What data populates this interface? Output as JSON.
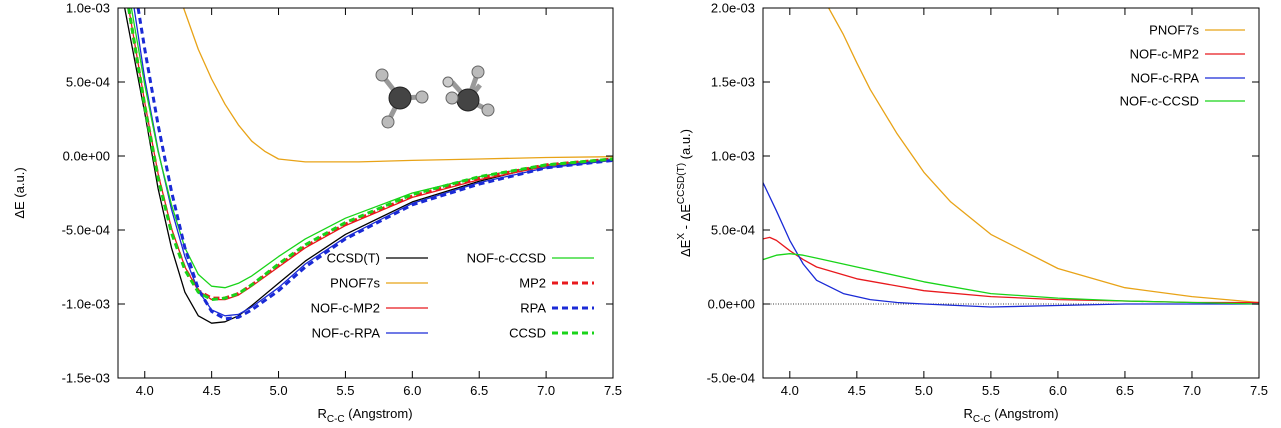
{
  "chart_data": [
    {
      "type": "line",
      "ylabel": "ΔE (a.u.)",
      "xlabel_main": "R",
      "xlabel_sub": "C-C",
      "xlabel_rest": " (Angstrom)",
      "xlim": [
        3.8,
        7.5
      ],
      "ylim": [
        -0.0015,
        0.001
      ],
      "xticks": [
        4.0,
        4.5,
        5.0,
        5.5,
        6.0,
        6.5,
        7.0,
        7.5
      ],
      "xtick_labels": [
        "4.0",
        "4.5",
        "5.0",
        "5.5",
        "6.0",
        "6.5",
        "7.0",
        "7.5"
      ],
      "yticks": [
        0.001,
        0.0005,
        0,
        -0.0005,
        -0.001,
        -0.0015
      ],
      "ytick_labels": [
        "1.0e-03",
        "5.0e-04",
        "0.0e+00",
        "-5.0e-04",
        "-1.0e-03",
        "-1.5e-03"
      ],
      "grid": false,
      "legend": "bottom-right, two columns",
      "series": [
        {
          "name": "CCSD(T)",
          "color": "#000000",
          "dash": "solid",
          "x": [
            3.85,
            4.0,
            4.1,
            4.2,
            4.3,
            4.4,
            4.5,
            4.6,
            4.7,
            4.8,
            5.0,
            5.2,
            5.5,
            6.0,
            6.5,
            7.0,
            7.5
          ],
          "values": [
            0.001,
            0.00029,
            -0.00022,
            -0.00062,
            -0.00092,
            -0.00108,
            -0.00113,
            -0.00112,
            -0.00108,
            -0.00101,
            -0.00086,
            -0.00071,
            -0.00053,
            -0.00031,
            -0.00017,
            -6e-05,
            -2e-05
          ]
        },
        {
          "name": "PNOF7s",
          "color": "#e8a317",
          "dash": "solid",
          "x": [
            4.29,
            4.4,
            4.5,
            4.6,
            4.7,
            4.8,
            4.9,
            5.0,
            5.2,
            5.4,
            5.6,
            6.0,
            6.5,
            7.0,
            7.5
          ],
          "values": [
            0.001,
            0.00072,
            0.00052,
            0.00035,
            0.00021,
            0.0001,
            3e-05,
            -2e-05,
            -4e-05,
            -4e-05,
            -4e-05,
            -3e-05,
            -2e-05,
            -1e-05,
            -5e-06
          ]
        },
        {
          "name": "NOF-c-MP2",
          "color": "#e8191d",
          "dash": "solid",
          "x": [
            3.88,
            4.0,
            4.1,
            4.2,
            4.3,
            4.4,
            4.5,
            4.6,
            4.7,
            4.8,
            5.0,
            5.2,
            5.5,
            6.0,
            6.5,
            7.0,
            7.5
          ],
          "values": [
            0.001,
            0.00036,
            -0.00012,
            -0.00049,
            -0.00075,
            -0.00091,
            -0.00097,
            -0.00097,
            -0.00094,
            -0.00088,
            -0.00075,
            -0.00062,
            -0.00047,
            -0.00028,
            -0.00016,
            -7e-05,
            -3e-05
          ]
        },
        {
          "name": "NOF-c-RPA",
          "color": "#1a2ad6",
          "dash": "solid",
          "x": [
            3.92,
            4.0,
            4.1,
            4.2,
            4.3,
            4.4,
            4.5,
            4.6,
            4.7,
            4.8,
            5.0,
            5.2,
            5.5,
            6.0,
            6.5,
            7.0,
            7.5
          ],
          "values": [
            0.001,
            0.00052,
            4e-05,
            -0.00036,
            -0.00068,
            -0.00091,
            -0.00104,
            -0.00108,
            -0.00107,
            -0.00102,
            -0.00089,
            -0.00073,
            -0.00055,
            -0.00032,
            -0.00018,
            -8e-05,
            -3e-05
          ]
        },
        {
          "name": "NOF-c-CCSD",
          "color": "#19d419",
          "dash": "solid",
          "x": [
            3.9,
            4.0,
            4.1,
            4.2,
            4.3,
            4.4,
            4.5,
            4.6,
            4.7,
            4.8,
            5.0,
            5.2,
            5.5,
            6.0,
            6.5,
            7.0,
            7.5
          ],
          "values": [
            0.001,
            0.00048,
            3e-05,
            -0.00033,
            -0.00062,
            -0.0008,
            -0.00088,
            -0.00089,
            -0.00086,
            -0.00081,
            -0.00068,
            -0.00056,
            -0.00042,
            -0.00025,
            -0.00014,
            -6e-05,
            -2e-05
          ]
        },
        {
          "name": "MP2",
          "color": "#e8191d",
          "dash": "dashed",
          "x": [
            3.88,
            4.0,
            4.1,
            4.2,
            4.3,
            4.4,
            4.5,
            4.6,
            4.7,
            4.8,
            5.0,
            5.2,
            5.5,
            6.0,
            6.5,
            7.0,
            7.5
          ],
          "values": [
            0.001,
            0.00034,
            -0.00014,
            -0.00051,
            -0.00076,
            -0.00091,
            -0.00096,
            -0.00096,
            -0.00093,
            -0.00087,
            -0.00074,
            -0.00061,
            -0.00046,
            -0.00027,
            -0.00015,
            -6e-05,
            -2e-05
          ]
        },
        {
          "name": "RPA",
          "color": "#1a2ad6",
          "dash": "dashed",
          "x": [
            3.95,
            4.0,
            4.1,
            4.2,
            4.3,
            4.4,
            4.5,
            4.6,
            4.7,
            4.8,
            5.0,
            5.2,
            5.5,
            6.0,
            6.5,
            7.0,
            7.5
          ],
          "values": [
            0.001,
            0.00072,
            0.00021,
            -0.00024,
            -0.00062,
            -0.0009,
            -0.00105,
            -0.0011,
            -0.00109,
            -0.00104,
            -0.00091,
            -0.00075,
            -0.00056,
            -0.00033,
            -0.00019,
            -8e-05,
            -3e-05
          ]
        },
        {
          "name": "CCSD",
          "color": "#19d419",
          "dash": "dashed",
          "x": [
            3.88,
            4.0,
            4.1,
            4.2,
            4.3,
            4.4,
            4.5,
            4.6,
            4.7,
            4.8,
            5.0,
            5.2,
            5.5,
            6.0,
            6.5,
            7.0,
            7.5
          ],
          "values": [
            0.001,
            0.00033,
            -0.00015,
            -0.00052,
            -0.00077,
            -0.00092,
            -0.00097,
            -0.00096,
            -0.00093,
            -0.00087,
            -0.00073,
            -0.0006,
            -0.00045,
            -0.00026,
            -0.00014,
            -6e-05,
            -2e-05
          ]
        }
      ],
      "legend_order": [
        "CCSD(T)",
        "NOF-c-CCSD",
        "PNOF7s",
        "MP2",
        "NOF-c-MP2",
        "RPA",
        "NOF-c-RPA",
        "CCSD"
      ],
      "inset_icon": "ethane-dimer-molecule-icon"
    },
    {
      "type": "line",
      "ylabel_main": "ΔE",
      "ylabel_sup1": "X",
      "ylabel_mid": " - ΔE",
      "ylabel_sup2": "CCSD(T)",
      "ylabel_rest": " (a.u.)",
      "xlabel_main": "R",
      "xlabel_sub": "C-C",
      "xlabel_rest": " (Angstrom)",
      "xlim": [
        3.8,
        7.5
      ],
      "ylim": [
        -0.0005,
        0.002
      ],
      "xticks": [
        4.0,
        4.5,
        5.0,
        5.5,
        6.0,
        6.5,
        7.0,
        7.5
      ],
      "xtick_labels": [
        "4.0",
        "4.5",
        "5.0",
        "5.5",
        "6.0",
        "6.5",
        "7.0",
        "7.5"
      ],
      "yticks": [
        0.002,
        0.0015,
        0.001,
        0.0005,
        0,
        -0.0005
      ],
      "ytick_labels": [
        "2.0e-03",
        "1.5e-03",
        "1.0e-03",
        "5.0e-04",
        "0.0e+00",
        "-5.0e-04"
      ],
      "grid": false,
      "zero_line": true,
      "legend": "top-right",
      "series": [
        {
          "name": "PNOF7s",
          "color": "#e8a317",
          "dash": "solid",
          "x": [
            4.29,
            4.4,
            4.5,
            4.6,
            4.8,
            5.0,
            5.2,
            5.5,
            6.0,
            6.5,
            7.0,
            7.5
          ],
          "values": [
            0.002,
            0.00182,
            0.00163,
            0.00145,
            0.00115,
            0.00089,
            0.00069,
            0.00047,
            0.00024,
            0.00011,
            5e-05,
            1e-05
          ]
        },
        {
          "name": "NOF-c-MP2",
          "color": "#e8191d",
          "dash": "solid",
          "x": [
            3.8,
            3.85,
            3.9,
            4.0,
            4.1,
            4.2,
            4.5,
            5.0,
            5.5,
            6.0,
            6.5,
            7.0,
            7.5
          ],
          "values": [
            0.00044,
            0.00045,
            0.00043,
            0.00036,
            0.0003,
            0.00025,
            0.00017,
            9e-05,
            5e-05,
            3e-05,
            2e-05,
            1e-05,
            1e-05
          ]
        },
        {
          "name": "NOF-c-RPA",
          "color": "#1a2ad6",
          "dash": "solid",
          "x": [
            3.8,
            3.9,
            4.0,
            4.1,
            4.2,
            4.4,
            4.6,
            4.8,
            5.0,
            5.5,
            6.0,
            6.5,
            7.0,
            7.5
          ],
          "values": [
            0.00082,
            0.00063,
            0.00043,
            0.00027,
            0.00016,
            7e-05,
            3e-05,
            1e-05,
            0.0,
            -2e-05,
            -1e-05,
            0.0,
            0.0,
            0.0
          ]
        },
        {
          "name": "NOF-c-CCSD",
          "color": "#19d419",
          "dash": "solid",
          "x": [
            3.8,
            3.9,
            4.0,
            4.1,
            4.2,
            4.5,
            5.0,
            5.5,
            6.0,
            6.5,
            7.0,
            7.5
          ],
          "values": [
            0.0003,
            0.00033,
            0.00034,
            0.00033,
            0.00031,
            0.00025,
            0.00015,
            7e-05,
            4e-05,
            2e-05,
            1e-05,
            0.0
          ]
        }
      ]
    }
  ]
}
